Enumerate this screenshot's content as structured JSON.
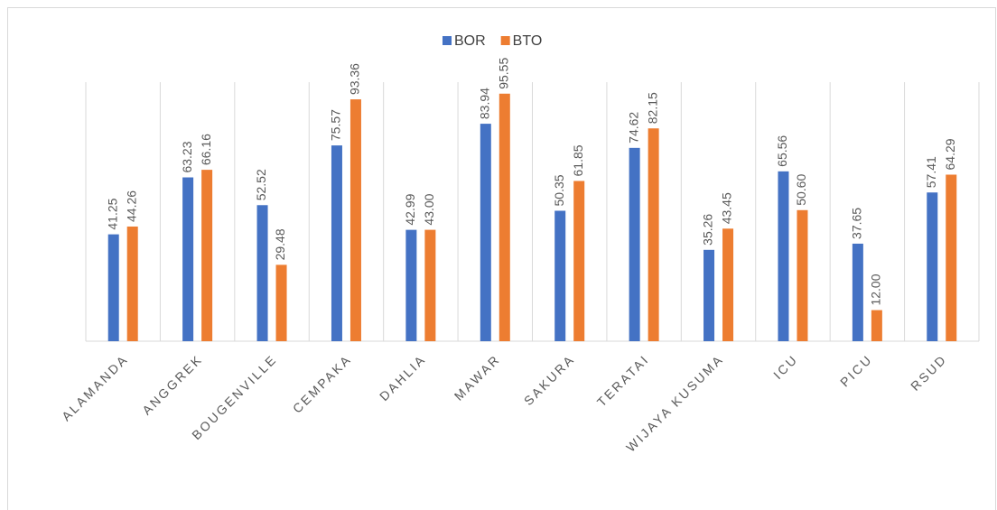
{
  "chart_data": {
    "type": "bar",
    "categories": [
      "ALAMANDA",
      "ANGGREK",
      "BOUGENVILLE",
      "CEMPAKA",
      "DAHLIA",
      "MAWAR",
      "SAKURA",
      "TERATAI",
      "WIJAYA KUSUMA",
      "ICU",
      "PICU",
      "RSUD"
    ],
    "series": [
      {
        "name": "BOR",
        "color": "#4472c4",
        "values": [
          41.25,
          63.23,
          52.52,
          75.57,
          42.99,
          83.94,
          50.35,
          74.62,
          35.26,
          65.56,
          37.65,
          57.41
        ],
        "value_labels": [
          "41.25",
          "63.23",
          "52.52",
          "75.57",
          "42.99",
          "83.94",
          "50.35",
          "74.62",
          "35.26",
          "65.56",
          "37.65",
          "57.41"
        ]
      },
      {
        "name": "BTO",
        "color": "#ed7d31",
        "values": [
          44.26,
          66.16,
          29.48,
          93.36,
          43,
          95.55,
          61.85,
          82.15,
          43.45,
          50.6,
          12,
          64.29
        ],
        "value_labels": [
          "44.26",
          "66.16",
          "29.48",
          "93.36",
          "43.00",
          "95.55",
          "61.85",
          "82.15",
          "43.45",
          "50.60",
          "12.00",
          "64.29"
        ]
      }
    ],
    "ylim": [
      0,
      100
    ],
    "legend": "top"
  }
}
